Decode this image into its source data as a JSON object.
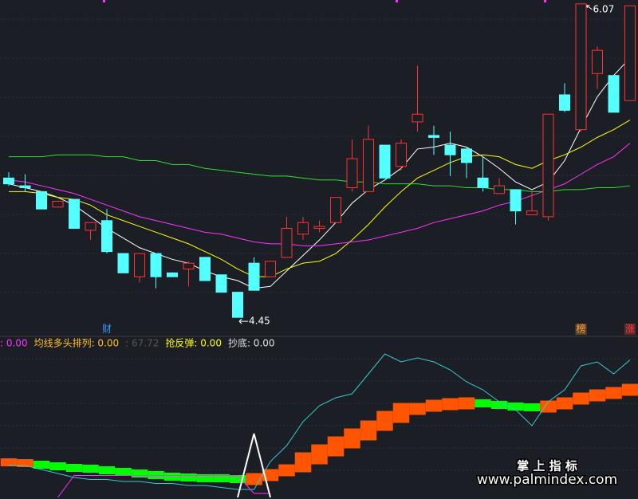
{
  "chart_data": [
    {
      "type": "candlestick",
      "open": [
        5.17,
        5.13,
        5.1,
        5.02,
        5.06,
        4.9,
        4.95,
        4.78,
        4.66,
        4.78,
        4.68,
        4.7,
        4.76,
        4.67,
        4.58,
        4.73,
        4.66,
        4.76,
        4.88,
        4.91,
        4.94,
        5.12,
        5.1,
        5.34,
        5.23,
        5.46,
        5.39,
        5.34,
        5.32,
        5.17,
        5.09,
        5.11,
        4.98,
        4.97,
        5.6,
        5.42,
        5.71,
        5.7,
        5.57
      ],
      "high": [
        5.2,
        5.19,
        5.1,
        5.05,
        5.06,
        4.94,
        5.01,
        4.78,
        4.78,
        4.78,
        4.68,
        4.74,
        4.76,
        4.67,
        4.58,
        4.76,
        4.74,
        4.97,
        4.97,
        4.95,
        5.07,
        5.37,
        5.44,
        5.34,
        5.37,
        5.75,
        5.44,
        5.41,
        5.33,
        5.28,
        5.17,
        5.11,
        5.1,
        5.5,
        5.66,
        6.07,
        5.85,
        5.7,
        6.06
      ],
      "low": [
        5.13,
        5.1,
        5.01,
        5.02,
        4.91,
        4.85,
        4.78,
        4.68,
        4.63,
        4.6,
        4.66,
        4.61,
        4.64,
        4.58,
        4.45,
        4.59,
        4.66,
        4.76,
        4.85,
        4.89,
        4.94,
        5.1,
        5.1,
        5.17,
        5.21,
        5.41,
        5.29,
        5.18,
        5.17,
        5.1,
        5.09,
        4.93,
        4.98,
        4.95,
        5.51,
        5.41,
        5.63,
        5.51,
        5.57
      ],
      "close": [
        5.14,
        5.12,
        5.01,
        5.05,
        4.91,
        4.94,
        4.79,
        4.68,
        4.78,
        4.66,
        4.66,
        4.73,
        4.64,
        4.58,
        4.45,
        4.59,
        4.74,
        4.91,
        4.94,
        4.92,
        5.07,
        5.27,
        5.37,
        5.17,
        5.35,
        5.5,
        5.38,
        5.29,
        5.25,
        5.12,
        5.13,
        5.0,
        5.0,
        5.5,
        5.52,
        6.07,
        5.83,
        5.51,
        6.06
      ],
      "up_color": "#ff3232",
      "down_color": "#54ffff",
      "ylim": [
        4.36,
        6.09
      ],
      "series": [
        {
          "color": "#ffffff",
          "values": [
            5.14,
            5.12,
            5.1,
            5.07,
            5.03,
            4.97,
            4.91,
            4.86,
            4.81,
            4.78,
            4.75,
            4.73,
            4.69,
            4.66,
            4.64,
            4.6,
            4.61,
            4.69,
            4.77,
            4.85,
            4.94,
            5.04,
            5.11,
            5.16,
            5.22,
            5.32,
            5.33,
            5.35,
            5.33,
            5.28,
            5.22,
            5.15,
            5.11,
            5.15,
            5.26,
            5.43,
            5.59,
            5.7,
            5.79
          ]
        },
        {
          "color": "#ffff00",
          "values": [
            5.1,
            5.1,
            5.09,
            5.07,
            5.06,
            5.03,
            4.98,
            4.95,
            4.92,
            4.89,
            4.86,
            4.83,
            4.79,
            4.75,
            4.7,
            4.66,
            4.66,
            4.7,
            4.73,
            4.74,
            4.78,
            4.85,
            4.93,
            5.02,
            5.1,
            5.17,
            5.21,
            5.25,
            5.28,
            5.29,
            5.28,
            5.24,
            5.22,
            5.26,
            5.29,
            5.33,
            5.38,
            5.42,
            5.47
          ]
        },
        {
          "color": "#ff33ff",
          "values": [
            5.16,
            5.15,
            5.13,
            5.11,
            5.09,
            5.06,
            5.03,
            5.0,
            4.97,
            4.95,
            4.93,
            4.91,
            4.89,
            4.88,
            4.86,
            4.84,
            4.83,
            4.83,
            4.82,
            4.82,
            4.83,
            4.84,
            4.85,
            4.87,
            4.89,
            4.91,
            4.94,
            4.96,
            4.98,
            5.0,
            5.03,
            5.05,
            5.08,
            5.11,
            5.14,
            5.19,
            5.24,
            5.28,
            5.35
          ]
        },
        {
          "color": "#33dd33",
          "values": [
            5.28,
            5.28,
            5.28,
            5.29,
            5.29,
            5.29,
            5.28,
            5.28,
            5.26,
            5.26,
            5.24,
            5.24,
            5.22,
            5.21,
            5.2,
            5.19,
            5.18,
            5.18,
            5.17,
            5.16,
            5.16,
            5.15,
            5.15,
            5.14,
            5.14,
            5.14,
            5.13,
            5.13,
            5.12,
            5.12,
            5.11,
            5.11,
            5.1,
            5.1,
            5.11,
            5.11,
            5.12,
            5.12,
            5.13
          ]
        }
      ],
      "max_label": "6.07",
      "min_label": "4.45",
      "event_labels": [
        null,
        null,
        null,
        null,
        null,
        null,
        "财",
        null,
        null,
        null,
        null,
        null,
        null,
        null,
        null,
        null,
        null,
        null,
        null,
        null,
        null,
        null,
        null,
        null,
        null,
        null,
        null,
        null,
        null,
        null,
        null,
        null,
        null,
        null,
        null,
        "榜",
        null,
        null,
        "涨"
      ],
      "event_colors": [
        null,
        null,
        null,
        null,
        null,
        null,
        "#3a9cff",
        null,
        null,
        null,
        null,
        null,
        null,
        null,
        null,
        null,
        null,
        null,
        null,
        null,
        null,
        null,
        null,
        null,
        null,
        null,
        null,
        null,
        null,
        null,
        null,
        null,
        null,
        null,
        null,
        "#ffa040",
        null,
        null,
        "#ff4040"
      ]
    },
    {
      "type": "line",
      "ylim": [
        0,
        80
      ],
      "legend": [
        {
          "text": ": 0.00",
          "color": "#ff33ff"
        },
        {
          "text": "均线多头排列: 0.00",
          "color": "#ffc020"
        },
        {
          "text": ": 67.72",
          "color": "#555555"
        },
        {
          "text": "抢反弹: 0.00",
          "color": "#ffff00"
        },
        {
          "text": "抄底: 0.00",
          "color": "#e0e0e0"
        }
      ],
      "bands": {
        "low": [
          15.6,
          15.2,
          14.4,
          13.6,
          12.8,
          12.4,
          11.6,
          10.8,
          10,
          9.2,
          8.4,
          8,
          7.6,
          7.6,
          7.2,
          6.2,
          8.2,
          10.6,
          12.6,
          16.6,
          20.6,
          24.6,
          28.6,
          33.4,
          37.4,
          41.4,
          43,
          43.8,
          44.2,
          45.2,
          44.4,
          43.6,
          43.2,
          42.6,
          44.2,
          46.6,
          48.2,
          49.4,
          51
        ],
        "high": [
          19.6,
          19.2,
          18.4,
          17.6,
          16.8,
          16.4,
          15.6,
          14.8,
          14,
          13.2,
          12.4,
          12,
          11.6,
          11.6,
          11.2,
          12.2,
          14.2,
          16.6,
          22.6,
          26.6,
          30.6,
          34.6,
          38.6,
          43.4,
          47.4,
          47.4,
          49,
          49.8,
          50.2,
          49.2,
          48.4,
          47.6,
          47.2,
          48.6,
          50.2,
          52.6,
          54.2,
          55.4,
          57
        ],
        "colors": [
          "#ff5500",
          "#ff5500",
          "#00ff00",
          "#00ff00",
          "#00ff00",
          "#00ff00",
          "#00ff00",
          "#00ff00",
          "#00ff00",
          "#00ff00",
          "#00ff00",
          "#00ff00",
          "#00ff00",
          "#00ff00",
          "#00ff00",
          "#ff5500",
          "#ff5500",
          "#ff5500",
          "#ff5500",
          "#ff5500",
          "#ff5500",
          "#ff5500",
          "#ff5500",
          "#ff5500",
          "#ff5500",
          "#ff5500",
          "#ff5500",
          "#ff5500",
          "#ff5500",
          "#00ff00",
          "#00ff00",
          "#00ff00",
          "#00ff00",
          "#ff5500",
          "#ff5500",
          "#ff5500",
          "#ff5500",
          "#ff5500",
          "#ff5500"
        ]
      },
      "series": [
        {
          "color": "#33cccc",
          "values": [
            16,
            16,
            14,
            12,
            10,
            9,
            9,
            8,
            8,
            7,
            7,
            6,
            6,
            5,
            4,
            4,
            18,
            26,
            38,
            46,
            50,
            52,
            62,
            72,
            68,
            70,
            68,
            64,
            58,
            54,
            48,
            44,
            36,
            48,
            54,
            66,
            68,
            62,
            69
          ]
        },
        {
          "color": "#ff33ff",
          "values": [
            null,
            null,
            null,
            0,
            11,
            11,
            11,
            11,
            11,
            11,
            11,
            11,
            11,
            11,
            11,
            2,
            2,
            null,
            null,
            null,
            null,
            null,
            null,
            null,
            null,
            null,
            null,
            null,
            null,
            null,
            null,
            null,
            null,
            null,
            null,
            null,
            null,
            null,
            null
          ]
        },
        {
          "color": "#ffffff",
          "values": [
            null,
            null,
            null,
            null,
            null,
            null,
            null,
            null,
            null,
            null,
            null,
            null,
            null,
            null,
            0,
            32,
            0,
            null,
            null,
            null,
            null,
            null,
            null,
            null,
            null,
            null,
            null,
            null,
            null,
            null,
            null,
            null,
            null,
            null,
            null,
            null,
            null,
            null,
            null
          ]
        }
      ]
    }
  ],
  "watermark": {
    "title": "掌 上 指 标",
    "url": "www.palmindex.com"
  }
}
